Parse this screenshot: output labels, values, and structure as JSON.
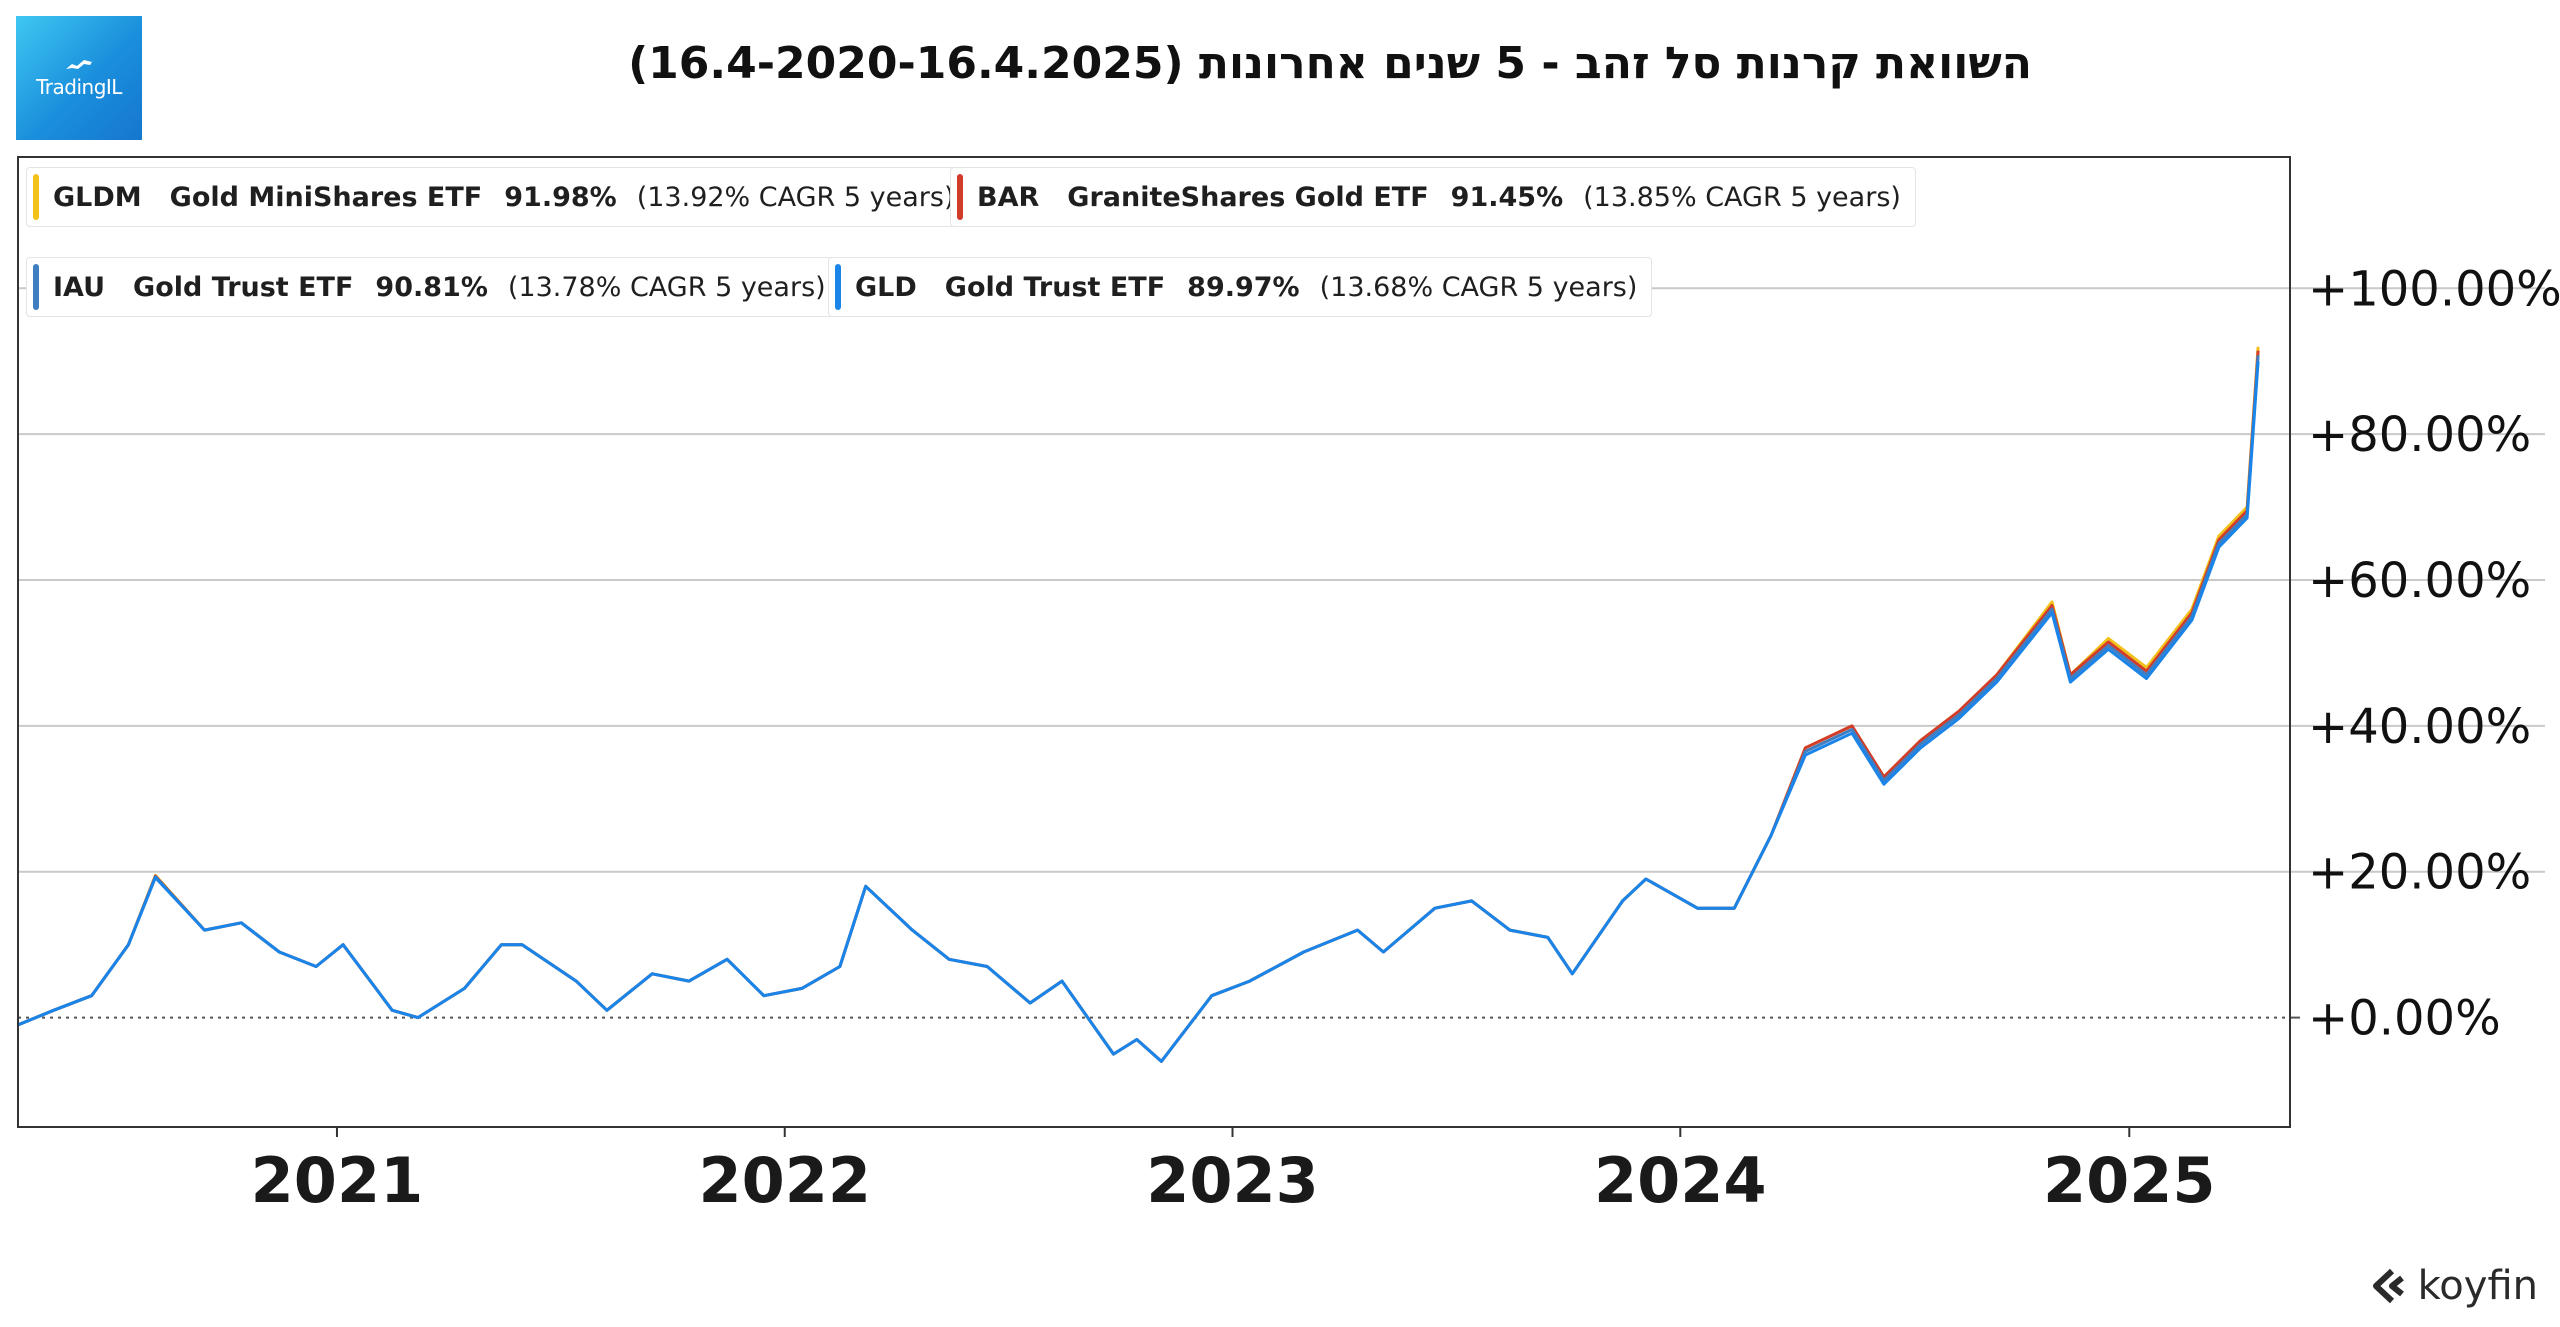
{
  "title": "השוואת קרנות סל זהב - 5 שנים אחרונות (16.4-2020-16.4.2025)",
  "logo": {
    "text": "TradingIL"
  },
  "brand": {
    "text": "koyfin",
    "icon": "koyfin-chevron-icon"
  },
  "legend": [
    {
      "ticker": "GLDM",
      "name": "Gold MiniShares ETF",
      "return": "91.98%",
      "cagr": "(13.92% CAGR 5 years)",
      "color": "#f2c21b"
    },
    {
      "ticker": "BAR",
      "name": "GraniteShares Gold ETF",
      "return": "91.45%",
      "cagr": "(13.85% CAGR 5 years)",
      "color": "#d23c2a"
    },
    {
      "ticker": "IAU",
      "name": "Gold Trust ETF",
      "return": "90.81%",
      "cagr": "(13.78% CAGR 5 years)",
      "color": "#3f7fc1"
    },
    {
      "ticker": "GLD",
      "name": "Gold Trust ETF",
      "return": "89.97%",
      "cagr": "(13.68% CAGR 5 years)",
      "color": "#1b84e8"
    }
  ],
  "chart_data": {
    "type": "line",
    "xlabel": "",
    "ylabel": "",
    "x_tick_labels": [
      "2021",
      "2022",
      "2023",
      "2024",
      "2025"
    ],
    "y_tick_labels": [
      "+0.00%",
      "+20.00%",
      "+40.00%",
      "+60.00%",
      "+80.00%",
      "+100.00%"
    ],
    "y_ticks": [
      0,
      20,
      40,
      60,
      80,
      100
    ],
    "ylim": [
      -15,
      118
    ],
    "xlim": [
      "2020-04-16",
      "2025-05-12"
    ],
    "grid": true,
    "legend_position": "top-left",
    "baseline": 0,
    "x": [
      "2020-04-16",
      "2020-05-15",
      "2020-06-15",
      "2020-07-15",
      "2020-08-06",
      "2020-09-15",
      "2020-10-15",
      "2020-11-15",
      "2020-12-15",
      "2021-01-06",
      "2021-02-15",
      "2021-03-08",
      "2021-04-15",
      "2021-05-15",
      "2021-06-01",
      "2021-07-15",
      "2021-08-09",
      "2021-09-15",
      "2021-10-15",
      "2021-11-15",
      "2021-12-15",
      "2022-01-15",
      "2022-02-15",
      "2022-03-08",
      "2022-04-15",
      "2022-05-15",
      "2022-06-15",
      "2022-07-20",
      "2022-08-15",
      "2022-09-26",
      "2022-10-15",
      "2022-11-04",
      "2022-12-15",
      "2023-01-15",
      "2023-02-28",
      "2023-04-13",
      "2023-05-04",
      "2023-06-15",
      "2023-07-15",
      "2023-08-15",
      "2023-09-15",
      "2023-10-05",
      "2023-11-15",
      "2023-12-04",
      "2024-01-15",
      "2024-02-14",
      "2024-03-15",
      "2024-04-12",
      "2024-05-20",
      "2024-06-15",
      "2024-07-15",
      "2024-08-15",
      "2024-09-15",
      "2024-10-30",
      "2024-11-14",
      "2024-12-15",
      "2025-01-15",
      "2025-02-21",
      "2025-03-15",
      "2025-04-07",
      "2025-04-16"
    ],
    "series": [
      {
        "name": "GLDM",
        "color": "#f2c21b",
        "values": [
          -1,
          1,
          3,
          10,
          19.5,
          12,
          13,
          9,
          7,
          10,
          1,
          0,
          4,
          10,
          10,
          5,
          1,
          6,
          5,
          8,
          3,
          4,
          7,
          18,
          12,
          8,
          7,
          2,
          5,
          -5,
          -3,
          -6,
          3,
          5,
          9,
          12,
          9,
          15,
          16,
          12,
          11,
          6,
          16,
          19,
          15,
          15,
          25,
          37,
          40,
          33,
          38,
          42,
          47,
          57,
          47,
          52,
          48,
          56,
          66,
          70,
          91.98
        ]
      },
      {
        "name": "BAR",
        "color": "#d23c2a",
        "values": [
          -1,
          1,
          3,
          10,
          19.4,
          12,
          13,
          9,
          7,
          10,
          1,
          0,
          4,
          10,
          10,
          5,
          1,
          6,
          5,
          8,
          3,
          4,
          7,
          18,
          12,
          8,
          7,
          2,
          5,
          -5,
          -3,
          -6,
          3,
          5,
          9,
          12,
          9,
          15,
          16,
          12,
          11,
          6,
          16,
          19,
          15,
          15,
          25,
          37,
          40,
          33,
          38,
          42,
          47,
          56.5,
          47,
          51.5,
          47.5,
          55.5,
          65.5,
          69.5,
          91.45
        ]
      },
      {
        "name": "IAU",
        "color": "#3f7fc1",
        "values": [
          -1,
          1,
          3,
          10,
          19.3,
          12,
          13,
          9,
          7,
          10,
          1,
          0,
          4,
          10,
          10,
          5,
          1,
          6,
          5,
          8,
          3,
          4,
          7,
          18,
          12,
          8,
          7,
          2,
          5,
          -5,
          -3,
          -6,
          3,
          5,
          9,
          12,
          9,
          15,
          16,
          12,
          11,
          6,
          16,
          19,
          15,
          15,
          25,
          36.5,
          39.5,
          32.5,
          37.5,
          41.5,
          46.5,
          56,
          46.5,
          51,
          47,
          55,
          65,
          69,
          90.81
        ]
      },
      {
        "name": "GLD",
        "color": "#1b84e8",
        "values": [
          -1,
          1,
          3,
          10,
          19.2,
          12,
          13,
          9,
          7,
          10,
          1,
          0,
          4,
          10,
          10,
          5,
          1,
          6,
          5,
          8,
          3,
          4,
          7,
          18,
          12,
          8,
          7,
          2,
          5,
          -5,
          -3,
          -6,
          3,
          5,
          9,
          12,
          9,
          15,
          16,
          12,
          11,
          6,
          16,
          19,
          15,
          15,
          25,
          36,
          39,
          32,
          37,
          41,
          46,
          55.5,
          46,
          50.5,
          46.5,
          54.5,
          64.5,
          68.5,
          89.97
        ]
      }
    ]
  }
}
